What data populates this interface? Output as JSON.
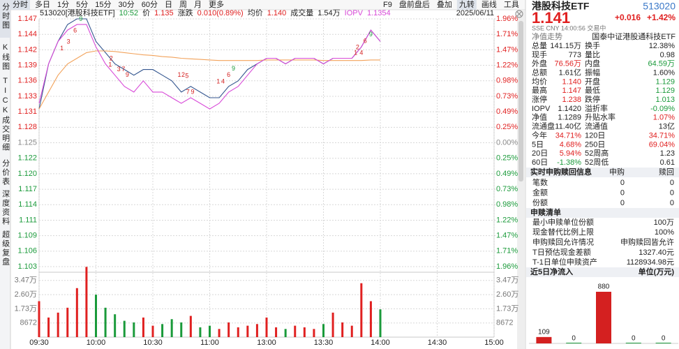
{
  "toolbar": {
    "left": [
      "分时",
      "多日",
      "1分",
      "5分",
      "15分",
      "30分",
      "60分",
      "日",
      "周",
      "月",
      "更多"
    ],
    "right": [
      "F9",
      "盘前盘后",
      "叠加",
      "九转",
      "画线",
      "工具"
    ]
  },
  "side_tabs": [
    "分时图",
    "K线图",
    "TICK",
    "成交明细",
    "分价表",
    "深度资料",
    "超级复盘"
  ],
  "info_bar": {
    "symbol": "513020[港股科技ETF]",
    "time": "10:52",
    "price": "1.135",
    "change_label": "涨跌",
    "change": "0.010(0.89%)",
    "avg": "1.140",
    "volume_label": "成交量",
    "volume": "1.54万",
    "iopv": "1.1354",
    "date": "2025/06/11"
  },
  "chart_data": [
    {
      "type": "line",
      "x": [
        0,
        5,
        10,
        15,
        20,
        25,
        30,
        35,
        40,
        45,
        50,
        55,
        60,
        65,
        70,
        75,
        80,
        85,
        90,
        95,
        100,
        105,
        110,
        115,
        120,
        125,
        130,
        135,
        140,
        145,
        150,
        155,
        160,
        165,
        170,
        175,
        180
      ],
      "xlim": [
        0,
        240
      ],
      "xticks": [
        {
          "value": 0,
          "label": "09:30"
        },
        {
          "value": 30,
          "label": "10:00"
        },
        {
          "value": 60,
          "label": "10:30"
        },
        {
          "value": 90,
          "label": "11:00"
        },
        {
          "value": 120,
          "label": "13:00"
        },
        {
          "value": 150,
          "label": "13:30"
        },
        {
          "value": 180,
          "label": "14:00"
        },
        {
          "value": 210,
          "label": "14:30"
        },
        {
          "value": 240,
          "label": "15:00"
        }
      ],
      "ylim": [
        1.103,
        1.147
      ],
      "yticks": [
        1.103,
        {
          "value": 1.10575,
          "label": "1.106"
        },
        {
          "value": 1.1085,
          "label": "1.109"
        },
        {
          "value": 1.11125,
          "label": "1.111"
        },
        1.114,
        {
          "value": 1.11675,
          "label": "1.117"
        },
        {
          "value": 1.1195,
          "label": "1.120"
        },
        {
          "value": 1.12225,
          "label": "1.122"
        },
        1.125,
        {
          "value": 1.12775,
          "label": "1.128"
        },
        {
          "value": 1.1305,
          "label": "1.131"
        },
        {
          "value": 1.13325,
          "label": "1.133"
        },
        1.136,
        {
          "value": 1.13875,
          "label": "1.139"
        },
        {
          "value": 1.1415,
          "label": "1.142"
        },
        {
          "value": 1.14425,
          "label": "1.144"
        },
        1.147
      ],
      "y2lim": [
        -1.96,
        1.96
      ],
      "y2ticks": [
        {
          "value": -1.96,
          "label": "1.96%"
        },
        {
          "value": -1.715,
          "label": "1.71%"
        },
        {
          "value": -1.47,
          "label": "1.47%"
        },
        {
          "value": -1.225,
          "label": "1.22%"
        },
        {
          "value": -0.98,
          "label": "0.98%"
        },
        {
          "value": -0.735,
          "label": "0.73%"
        },
        {
          "value": -0.49,
          "label": "0.49%"
        },
        {
          "value": -0.245,
          "label": "0.25%"
        },
        {
          "value": 0,
          "label": "0.00%"
        },
        {
          "value": 0.245,
          "label": "0.25%"
        },
        {
          "value": 0.49,
          "label": "0.49%"
        },
        {
          "value": 0.735,
          "label": "0.73%"
        },
        {
          "value": 0.98,
          "label": "0.98%"
        },
        {
          "value": 1.225,
          "label": "1.22%"
        },
        {
          "value": 1.47,
          "label": "1.47%"
        },
        {
          "value": 1.715,
          "label": "1.71%"
        },
        {
          "value": 1.96,
          "label": "1.96%"
        }
      ],
      "grid": true,
      "up_color": "#e02020",
      "down_color": "#1a9a3a",
      "series": [
        {
          "name": "价",
          "color": "#34568f",
          "values": [
            1.131,
            1.139,
            1.143,
            1.146,
            1.147,
            1.147,
            1.143,
            1.141,
            1.139,
            1.138,
            1.137,
            1.138,
            1.138,
            1.137,
            1.136,
            1.134,
            1.135,
            1.134,
            1.133,
            1.133,
            1.135,
            1.136,
            1.138,
            1.139,
            1.14,
            1.14,
            1.139,
            1.14,
            1.14,
            1.14,
            1.139,
            1.14,
            1.14,
            1.14,
            1.142,
            1.145,
            1.143
          ]
        },
        {
          "name": "均价",
          "color": "#f2a25a",
          "values": [
            1.131,
            1.134,
            1.137,
            1.139,
            1.14,
            1.141,
            1.1413,
            1.1413,
            1.1412,
            1.141,
            1.1408,
            1.1406,
            1.1405,
            1.1403,
            1.1402,
            1.14,
            1.1399,
            1.1398,
            1.1397,
            1.1396,
            1.1396,
            1.1396,
            1.1396,
            1.1396,
            1.1397,
            1.1397,
            1.1397,
            1.1397,
            1.1397,
            1.1397,
            1.1396,
            1.1396,
            1.1396,
            1.1396,
            1.1396,
            1.1397,
            1.1397
          ]
        },
        {
          "name": "IOPV",
          "color": "#d84ad8",
          "values": [
            1.132,
            1.139,
            1.143,
            1.145,
            1.146,
            1.146,
            1.142,
            1.139,
            1.137,
            1.135,
            1.134,
            1.136,
            1.134,
            1.134,
            1.133,
            1.132,
            1.133,
            1.132,
            1.131,
            1.132,
            1.134,
            1.135,
            1.137,
            1.139,
            1.14,
            1.14,
            1.139,
            1.14,
            1.14,
            1.14,
            1.139,
            1.14,
            1.14,
            1.14,
            1.142,
            1.145,
            1.143
          ]
        }
      ],
      "annotations": [
        {
          "text": "1",
          "x": 12,
          "y": 1.1417,
          "color": "#d42020"
        },
        {
          "text": "3",
          "x": 15.5,
          "y": 1.1429,
          "color": "#d42020"
        },
        {
          "text": "6",
          "x": 19,
          "y": 1.1449,
          "color": "#d42020"
        },
        {
          "text": "9",
          "x": 22,
          "y": 1.1469,
          "color": "#1a9a3a"
        },
        {
          "text": "2",
          "x": 38,
          "y": 1.1399,
          "color": "#d42020"
        },
        {
          "text": "1",
          "x": 37.5,
          "y": 1.1388,
          "color": "#d42020"
        },
        {
          "text": "3",
          "x": 42,
          "y": 1.138,
          "color": "#d42020"
        },
        {
          "text": "7",
          "x": 44.5,
          "y": 1.138,
          "color": "#d42020"
        },
        {
          "text": "9",
          "x": 46.5,
          "y": 1.137,
          "color": "#d42020"
        },
        {
          "text": "1",
          "x": 74,
          "y": 1.137,
          "color": "#d42020"
        },
        {
          "text": "2",
          "x": 76,
          "y": 1.137,
          "color": "#d42020"
        },
        {
          "text": "5",
          "x": 78,
          "y": 1.1368,
          "color": "#d42020"
        },
        {
          "text": "7",
          "x": 78.5,
          "y": 1.134,
          "color": "#d42020"
        },
        {
          "text": "9",
          "x": 81,
          "y": 1.134,
          "color": "#d42020"
        },
        {
          "text": "1",
          "x": 94.5,
          "y": 1.1358,
          "color": "#d42020"
        },
        {
          "text": "4",
          "x": 97,
          "y": 1.1358,
          "color": "#d42020"
        },
        {
          "text": "6",
          "x": 100,
          "y": 1.137,
          "color": "#d42020"
        },
        {
          "text": "9",
          "x": 102.5,
          "y": 1.1381,
          "color": "#1a9a3a"
        },
        {
          "text": "1",
          "x": 167,
          "y": 1.1409,
          "color": "#d42020"
        },
        {
          "text": "4",
          "x": 170,
          "y": 1.1409,
          "color": "#d42020"
        },
        {
          "text": "2",
          "x": 168,
          "y": 1.1419,
          "color": "#d42020"
        },
        {
          "text": "6",
          "x": 172,
          "y": 1.143,
          "color": "#d42020"
        },
        {
          "text": "9",
          "x": 175,
          "y": 1.1442,
          "color": "#1a9a3a"
        }
      ]
    },
    {
      "type": "bar",
      "values": [
        22000,
        12000,
        15000,
        18000,
        30000,
        43000,
        26000,
        18000,
        14000,
        10000,
        9000,
        12000,
        7000,
        8000,
        11000,
        9000,
        13000,
        6000,
        7000,
        5000,
        9000,
        6000,
        7000,
        8000,
        12000,
        6000,
        5000,
        7000,
        6000,
        5000,
        8000,
        15000,
        9000,
        7000,
        33000,
        22000,
        17000
      ],
      "ylim": [
        0,
        44000
      ],
      "yticks": [
        8672,
        {
          "value": 17344,
          "label": "1.73万"
        },
        {
          "value": 26016,
          "label": "2.60万"
        },
        {
          "value": 34688,
          "label": "3.47万"
        }
      ],
      "grid": true
    },
    {
      "type": "bar",
      "title": "近5日净流入",
      "subtitle": "单位(万元)",
      "values": [
        109,
        0,
        880,
        0,
        0
      ],
      "color": "#d42020",
      "zero_color": "#1a9a3a"
    }
  ],
  "quote": {
    "name": "港股科技ETF",
    "code": "513020",
    "price": "1.141",
    "change": "+0.016",
    "pct": "+1.42%",
    "status": "SSE  CNY  14:00:56  交易中",
    "nav_link": "净值走势",
    "fund": "国泰中证港股通科技ETF",
    "stats": [
      [
        {
          "label": "总量",
          "value": "141.15万"
        },
        {
          "label": "换手",
          "value": "12.38%"
        }
      ],
      [
        {
          "label": "现手",
          "value": "773"
        },
        {
          "label": "量比",
          "value": "0.98"
        }
      ],
      [
        {
          "label": "外盘",
          "value": "76.56万",
          "tone": "up"
        },
        {
          "label": "内盘",
          "value": "64.59万",
          "tone": "down"
        }
      ],
      [
        {
          "label": "总额",
          "value": "1.61亿"
        },
        {
          "label": "振幅",
          "value": "1.60%"
        }
      ],
      [
        {
          "label": "均价",
          "value": "1.140",
          "tone": "up"
        },
        {
          "label": "开盘",
          "value": "1.129",
          "tone": "down"
        }
      ],
      [
        {
          "label": "最高",
          "value": "1.147",
          "tone": "up"
        },
        {
          "label": "最低",
          "value": "1.129",
          "tone": "down"
        }
      ],
      [
        {
          "label": "涨停",
          "value": "1.238",
          "tone": "up"
        },
        {
          "label": "跌停",
          "value": "1.013",
          "tone": "down"
        }
      ],
      [
        {
          "label": "IOPV",
          "value": "1.1420"
        },
        {
          "label": "溢折率",
          "value": "-0.09%",
          "tone": "down"
        }
      ],
      [
        {
          "label": "净值",
          "value": "1.1289"
        },
        {
          "label": "升贴水率",
          "value": "1.07%",
          "tone": "up"
        }
      ],
      [
        {
          "label": "流通盘",
          "value": "11.40亿"
        },
        {
          "label": "流通值",
          "value": "13亿"
        }
      ],
      [
        {
          "label": "今年",
          "value": "34.71%",
          "tone": "up"
        },
        {
          "label": "120日",
          "value": "34.71%",
          "tone": "up"
        }
      ],
      [
        {
          "label": "5日",
          "value": "4.68%",
          "tone": "up"
        },
        {
          "label": "250日",
          "value": "69.04%",
          "tone": "up"
        }
      ],
      [
        {
          "label": "20日",
          "value": "5.94%",
          "tone": "up"
        },
        {
          "label": "52周高",
          "value": "1.23"
        }
      ],
      [
        {
          "label": "60日",
          "value": "-1.38%",
          "tone": "down"
        },
        {
          "label": "52周低",
          "value": "0.61"
        }
      ]
    ],
    "flow_table": {
      "header": [
        "实时申购赎回信息",
        "申购",
        "赎回"
      ],
      "rows": [
        [
          "笔数",
          "0",
          "0"
        ],
        [
          "金额",
          "0",
          "0"
        ],
        [
          "份额",
          "0",
          "0"
        ]
      ]
    },
    "list": {
      "title": "申赎清单",
      "rows": [
        [
          "最小申赎单位份额",
          "100万"
        ],
        [
          "现金替代比例上限",
          "100%"
        ],
        [
          "申购赎回允许情况",
          "申购赎回皆允许"
        ],
        [
          "T日预估现金差额",
          "1327.40元"
        ],
        [
          "T-1日单位申赎资产",
          "1128934.98元"
        ]
      ]
    }
  }
}
